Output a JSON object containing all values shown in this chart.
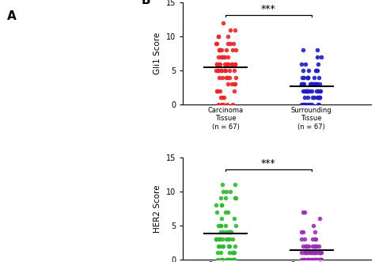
{
  "panel_B_label": "B",
  "panel_A_label": "A",
  "gli1_carcinoma_data": [
    12,
    11,
    11,
    10,
    10,
    10,
    9,
    9,
    9,
    9,
    9,
    8,
    8,
    8,
    8,
    8,
    8,
    8,
    7,
    7,
    7,
    7,
    7,
    7,
    6,
    6,
    6,
    6,
    6,
    6,
    6,
    6,
    6,
    6,
    6,
    6,
    5,
    5,
    5,
    5,
    5,
    5,
    5,
    5,
    5,
    4,
    4,
    4,
    4,
    4,
    4,
    3,
    3,
    3,
    3,
    2,
    2,
    2,
    2,
    1,
    1,
    1,
    0,
    0,
    0,
    0,
    0
  ],
  "gli1_surrounding_data": [
    8,
    8,
    7,
    7,
    6,
    6,
    6,
    5,
    5,
    5,
    5,
    5,
    4,
    4,
    4,
    4,
    4,
    4,
    4,
    3,
    3,
    3,
    3,
    3,
    3,
    3,
    3,
    3,
    3,
    3,
    3,
    3,
    3,
    3,
    3,
    2,
    2,
    2,
    2,
    2,
    2,
    2,
    2,
    2,
    2,
    2,
    2,
    1,
    1,
    1,
    1,
    1,
    1,
    1,
    1,
    1,
    0,
    0,
    0,
    0,
    0,
    0,
    0,
    0,
    0,
    0,
    0
  ],
  "her2_carcinoma_data": [
    11,
    11,
    10,
    10,
    10,
    9,
    9,
    9,
    9,
    8,
    8,
    8,
    7,
    7,
    7,
    6,
    6,
    5,
    5,
    5,
    5,
    5,
    4,
    4,
    4,
    4,
    4,
    4,
    4,
    4,
    3,
    3,
    3,
    3,
    3,
    3,
    3,
    3,
    3,
    3,
    2,
    2,
    2,
    2,
    2,
    2,
    2,
    1,
    1,
    1,
    1,
    1,
    1,
    0,
    0,
    0,
    0,
    0,
    0,
    0,
    0,
    0,
    0,
    0,
    0,
    0,
    0
  ],
  "her2_surrounding_data": [
    7,
    7,
    6,
    5,
    4,
    4,
    4,
    3,
    3,
    3,
    3,
    3,
    2,
    2,
    2,
    2,
    2,
    2,
    2,
    2,
    2,
    2,
    2,
    2,
    1,
    1,
    1,
    1,
    1,
    1,
    1,
    1,
    1,
    1,
    1,
    1,
    1,
    1,
    1,
    1,
    1,
    1,
    0,
    0,
    0,
    0,
    0,
    0,
    0,
    0,
    0,
    0,
    0,
    0,
    0,
    0,
    0,
    0,
    0,
    0,
    0,
    0,
    0,
    0,
    0,
    0,
    0
  ],
  "gli1_color_carcinoma": "#e8272a",
  "gli1_color_surrounding": "#1f1fbf",
  "her2_color_carcinoma": "#32b832",
  "her2_color_surrounding": "#9b2db5",
  "gli1_ylabel": "Gli1 Score",
  "her2_ylabel": "HER2 Score",
  "x_labels": [
    "Carcinoma\nTissue\n(n = 67)",
    "Surrounding\nTissue\n(n = 67)"
  ],
  "ylim": [
    0,
    15
  ],
  "yticks": [
    0,
    5,
    10,
    15
  ],
  "significance": "***",
  "marker_size": 4,
  "jitter_scale": 0.12
}
